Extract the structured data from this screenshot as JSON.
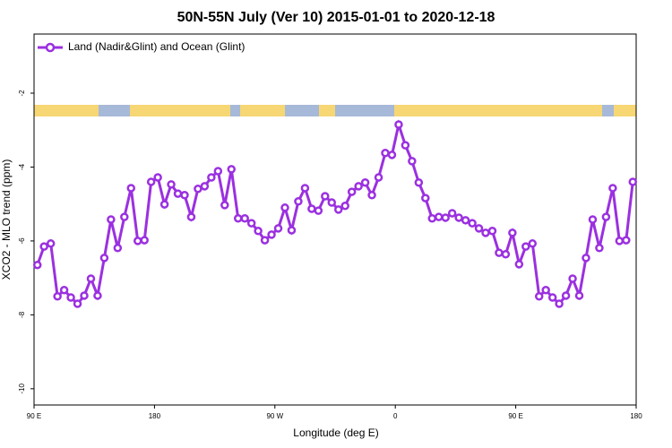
{
  "chart_data": {
    "type": "line",
    "title": "50N-55N July (Ver 10)   2015-01-01 to 2020-12-18",
    "x_label": "Longitude (deg E)",
    "y_label": "XCO2 - MLO trend (ppm)",
    "xlim": [
      90,
      540
    ],
    "ylim": [
      -10.44,
      -0.4
    ],
    "xticks": [
      {
        "value": 90,
        "label": "90 E"
      },
      180,
      {
        "value": 270,
        "label": "90 W"
      },
      {
        "value": 360,
        "label": "0"
      },
      {
        "value": 450,
        "label": "90 E"
      },
      {
        "value": 540,
        "label": "180"
      }
    ],
    "yticks": [
      -2,
      -4,
      -6,
      -8,
      -10
    ],
    "legend": "top-left",
    "x": [
      92.5,
      97.5,
      102.5,
      107.5,
      112.5,
      117.5,
      122.5,
      127.5,
      132.5,
      137.5,
      142.5,
      147.5,
      152.5,
      157.5,
      162.5,
      167.5,
      172.5,
      177.5,
      182.5,
      187.5,
      192.5,
      197.5,
      202.5,
      207.5,
      212.5,
      217.5,
      222.5,
      227.5,
      232.5,
      237.5,
      242.5,
      247.5,
      252.5,
      257.5,
      262.5,
      267.5,
      272.5,
      277.5,
      282.5,
      287.5,
      292.5,
      297.5,
      302.5,
      307.5,
      312.5,
      317.5,
      322.5,
      327.5,
      332.5,
      337.5,
      342.5,
      347.5,
      352.5,
      357.5,
      362.5,
      367.5,
      372.5,
      377.5,
      382.5,
      387.5,
      392.5,
      397.5,
      402.5,
      407.5,
      412.5,
      417.5,
      422.5,
      427.5,
      432.5,
      437.5,
      442.5,
      447.5,
      452.5,
      457.5,
      462.5,
      467.5,
      472.5,
      477.5,
      482.5,
      487.5,
      492.5,
      497.5,
      502.5,
      507.5,
      512.5,
      517.5,
      522.5,
      527.5,
      532.5,
      537.5
    ],
    "series": [
      {
        "name": "Land (Nadir&Glint) and Ocean (Glint)",
        "color": "#9b30e0",
        "values": [
          -6.65,
          -6.15,
          -6.07,
          -7.5,
          -7.33,
          -7.53,
          -7.7,
          -7.48,
          -7.02,
          -7.48,
          -6.46,
          -5.42,
          -6.19,
          -5.35,
          -4.57,
          -6.0,
          -5.98,
          -4.4,
          -4.28,
          -5.01,
          -4.47,
          -4.72,
          -4.76,
          -5.35,
          -4.59,
          -4.52,
          -4.28,
          -4.11,
          -5.03,
          -4.06,
          -5.39,
          -5.39,
          -5.52,
          -5.73,
          -5.98,
          -5.83,
          -5.66,
          -5.1,
          -5.71,
          -4.93,
          -4.57,
          -5.13,
          -5.18,
          -4.79,
          -4.96,
          -5.15,
          -5.05,
          -4.67,
          -4.52,
          -4.42,
          -4.76,
          -4.28,
          -3.62,
          -3.67,
          -2.85,
          -3.41,
          -3.84,
          -4.42,
          -4.84,
          -5.39,
          -5.35,
          -5.37,
          -5.25,
          -5.37,
          -5.44,
          -5.52,
          -5.66,
          -5.78,
          -5.73,
          -6.32,
          -6.36,
          -5.78,
          -6.63,
          -6.15,
          -6.07,
          -7.5,
          -7.33,
          -7.53,
          -7.7,
          -7.48,
          -7.02,
          -7.48,
          -6.46,
          -5.42,
          -6.19,
          -5.35,
          -4.57,
          -6.0,
          -5.98,
          -4.4
        ]
      }
    ]
  }
}
